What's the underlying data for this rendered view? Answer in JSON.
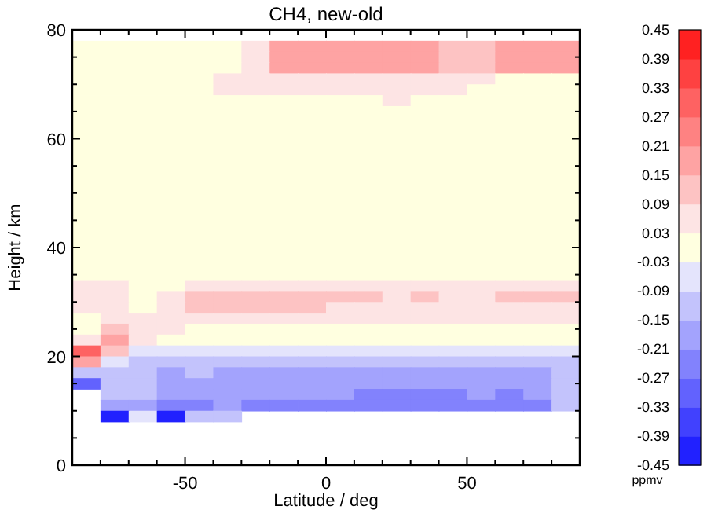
{
  "chart_data": {
    "type": "heatmap",
    "title": "CH4, new-old",
    "xlabel": "Latitude / deg",
    "ylabel": "Height / km",
    "clabel": "ppmv",
    "x": [
      -85,
      -75,
      -65,
      -55,
      -45,
      -35,
      -25,
      -15,
      -5,
      5,
      15,
      25,
      35,
      45,
      55,
      65,
      75,
      85
    ],
    "y": [
      77,
      75,
      73,
      71,
      69,
      67,
      65,
      63,
      61,
      59,
      57,
      55,
      53,
      51,
      49,
      47,
      45,
      43,
      41,
      39,
      37,
      35,
      33,
      31,
      29,
      27,
      25,
      23,
      21,
      19,
      17,
      15,
      13,
      11,
      9
    ],
    "xlim": [
      -90,
      90
    ],
    "xticks": [
      {
        "value": -80,
        "label": null
      },
      {
        "value": -70,
        "label": null
      },
      {
        "value": -60,
        "label": null
      },
      -50,
      {
        "value": -40,
        "label": null
      },
      {
        "value": -30,
        "label": null
      },
      {
        "value": -20,
        "label": null
      },
      {
        "value": -10,
        "label": null
      },
      0,
      {
        "value": 10,
        "label": null
      },
      {
        "value": 20,
        "label": null
      },
      {
        "value": 30,
        "label": null
      },
      {
        "value": 40,
        "label": null
      },
      50,
      {
        "value": 60,
        "label": null
      },
      {
        "value": 70,
        "label": null
      },
      {
        "value": 80,
        "label": null
      }
    ],
    "ylim": [
      0,
      80
    ],
    "yticks": [
      0,
      {
        "value": 5,
        "label": null
      },
      {
        "value": 10,
        "label": null
      },
      {
        "value": 15,
        "label": null
      },
      20,
      {
        "value": 25,
        "label": null
      },
      {
        "value": 30,
        "label": null
      },
      {
        "value": 35,
        "label": null
      },
      40,
      {
        "value": 45,
        "label": null
      },
      {
        "value": 50,
        "label": null
      },
      {
        "value": 55,
        "label": null
      },
      60,
      {
        "value": 65,
        "label": null
      },
      {
        "value": 70,
        "label": null
      },
      {
        "value": 75,
        "label": null
      },
      80
    ],
    "clim": [
      -0.45,
      0.45
    ],
    "cticks": [
      -0.45,
      -0.39,
      -0.33,
      -0.27,
      -0.21,
      -0.15,
      -0.09,
      -0.03,
      0.03,
      0.09,
      0.15,
      0.21,
      0.27,
      0.33,
      0.39,
      0.45
    ],
    "cells": [
      [
        0,
        0,
        0,
        0,
        0,
        0,
        0.06,
        0.18,
        0.18,
        0.18,
        0.18,
        0.18,
        0.18,
        0.12,
        0.12,
        0.18,
        0.18,
        0.18
      ],
      [
        0,
        0,
        0,
        0,
        0,
        0,
        0.06,
        0.18,
        0.18,
        0.18,
        0.18,
        0.18,
        0.18,
        0.12,
        0.12,
        0.18,
        0.18,
        0.18
      ],
      [
        0,
        0,
        0,
        0,
        0,
        0,
        0.06,
        0.18,
        0.18,
        0.18,
        0.18,
        0.18,
        0.18,
        0.12,
        0.12,
        0.18,
        0.18,
        0.18
      ],
      [
        0,
        0,
        0,
        0,
        0,
        0.06,
        0.06,
        0.06,
        0.06,
        0.06,
        0.06,
        0.06,
        0.06,
        0.06,
        0.06,
        0,
        0,
        0
      ],
      [
        0,
        0,
        0,
        0,
        0,
        0.06,
        0.06,
        0.06,
        0.06,
        0.06,
        0.06,
        0.06,
        0.06,
        0.06,
        0,
        0,
        0,
        0
      ],
      [
        0,
        0,
        0,
        0,
        0,
        0,
        0,
        0,
        0,
        0,
        0,
        0.06,
        0,
        0,
        0,
        0,
        0,
        0
      ],
      [
        0,
        0,
        0,
        0,
        0,
        0,
        0,
        0,
        0,
        0,
        0,
        0,
        0,
        0,
        0,
        0,
        0,
        0
      ],
      [
        0,
        0,
        0,
        0,
        0,
        0,
        0,
        0,
        0,
        0,
        0,
        0,
        0,
        0,
        0,
        0,
        0,
        0
      ],
      [
        0,
        0,
        0,
        0,
        0,
        0,
        0,
        0,
        0,
        0,
        0,
        0,
        0,
        0,
        0,
        0,
        0,
        0
      ],
      [
        0,
        0,
        0,
        0,
        0,
        0,
        0,
        0,
        0,
        0,
        0,
        0,
        0,
        0,
        0,
        0,
        0,
        0
      ],
      [
        0,
        0,
        0,
        0,
        0,
        0,
        0,
        0,
        0,
        0,
        0,
        0,
        0,
        0,
        0,
        0,
        0,
        0
      ],
      [
        0,
        0,
        0,
        0,
        0,
        0,
        0,
        0,
        0,
        0,
        0,
        0,
        0,
        0,
        0,
        0,
        0,
        0
      ],
      [
        0,
        0,
        0,
        0,
        0,
        0,
        0,
        0,
        0,
        0,
        0,
        0,
        0,
        0,
        0,
        0,
        0,
        0
      ],
      [
        0,
        0,
        0,
        0,
        0,
        0,
        0,
        0,
        0,
        0,
        0,
        0,
        0,
        0,
        0,
        0,
        0,
        0
      ],
      [
        0,
        0,
        0,
        0,
        0,
        0,
        0,
        0,
        0,
        0,
        0,
        0,
        0,
        0,
        0,
        0,
        0,
        0
      ],
      [
        0,
        0,
        0,
        0,
        0,
        0,
        0,
        0,
        0,
        0,
        0,
        0,
        0,
        0,
        0,
        0,
        0,
        0
      ],
      [
        0,
        0,
        0,
        0,
        0,
        0,
        0,
        0,
        0,
        0,
        0,
        0,
        0,
        0,
        0,
        0,
        0,
        0
      ],
      [
        0,
        0,
        0,
        0,
        0,
        0,
        0,
        0,
        0,
        0,
        0,
        0,
        0,
        0,
        0,
        0,
        0,
        0
      ],
      [
        0,
        0,
        0,
        0,
        0,
        0,
        0,
        0,
        0,
        0,
        0,
        0,
        0,
        0,
        0,
        0,
        0,
        0
      ],
      [
        0,
        0,
        0,
        0,
        0,
        0,
        0,
        0,
        0,
        0,
        0,
        0,
        0,
        0,
        0,
        0,
        0,
        0
      ],
      [
        0,
        0,
        0,
        0,
        0,
        0,
        0,
        0,
        0,
        0,
        0,
        0,
        0,
        0,
        0,
        0,
        0,
        0
      ],
      [
        0,
        0,
        0,
        0,
        0,
        0,
        0,
        0,
        0,
        0,
        0,
        0,
        0,
        0,
        0,
        0,
        0,
        0
      ],
      [
        0.06,
        0.06,
        0,
        0,
        0.06,
        0.06,
        0.06,
        0.06,
        0.06,
        0.06,
        0.06,
        0.06,
        0.06,
        0.06,
        0.06,
        0.06,
        0.06,
        0.06
      ],
      [
        0.06,
        0.06,
        0,
        0.06,
        0.12,
        0.12,
        0.12,
        0.12,
        0.12,
        0.12,
        0.12,
        0.06,
        0.12,
        0.06,
        0.06,
        0.12,
        0.12,
        0.12
      ],
      [
        0.06,
        0.06,
        0,
        0.06,
        0.12,
        0.12,
        0.12,
        0.12,
        0.12,
        0.06,
        0.06,
        0.06,
        0.06,
        0.06,
        0.06,
        0.06,
        0.06,
        0.06
      ],
      [
        0,
        0.06,
        0.06,
        0.06,
        0.06,
        0.06,
        0.06,
        0.06,
        0.06,
        0.06,
        0.06,
        0.06,
        0.06,
        0.06,
        0.06,
        0.06,
        0.06,
        0.06
      ],
      [
        0,
        0.12,
        0.06,
        0.06,
        0,
        0,
        0,
        0,
        0,
        0,
        0,
        0,
        0,
        0,
        0,
        0,
        0,
        0
      ],
      [
        0.06,
        0.18,
        0.06,
        0,
        0,
        0,
        0,
        0,
        0,
        0,
        0,
        0,
        0,
        0,
        0,
        0,
        0,
        0
      ],
      [
        0.3,
        0.12,
        -0.06,
        -0.06,
        -0.06,
        -0.06,
        -0.06,
        -0.06,
        -0.06,
        -0.06,
        -0.06,
        -0.06,
        -0.06,
        -0.06,
        -0.06,
        -0.06,
        -0.06,
        -0.06
      ],
      [
        0.18,
        -0.06,
        -0.12,
        -0.12,
        -0.12,
        -0.12,
        -0.12,
        -0.12,
        -0.12,
        -0.12,
        -0.12,
        -0.12,
        -0.12,
        -0.12,
        -0.12,
        -0.12,
        -0.12,
        -0.12
      ],
      [
        -0.12,
        -0.12,
        -0.12,
        -0.18,
        -0.12,
        -0.18,
        -0.18,
        -0.18,
        -0.18,
        -0.18,
        -0.18,
        -0.18,
        -0.18,
        -0.18,
        -0.18,
        -0.18,
        -0.18,
        -0.12
      ],
      [
        -0.3,
        -0.12,
        -0.12,
        -0.18,
        -0.18,
        -0.18,
        -0.18,
        -0.18,
        -0.18,
        -0.18,
        -0.18,
        -0.18,
        -0.18,
        -0.18,
        -0.18,
        -0.18,
        -0.18,
        -0.12
      ],
      [
        null,
        -0.12,
        -0.12,
        -0.18,
        -0.18,
        -0.18,
        -0.18,
        -0.18,
        -0.18,
        -0.18,
        -0.24,
        -0.24,
        -0.24,
        -0.24,
        -0.18,
        -0.24,
        -0.18,
        -0.12
      ],
      [
        null,
        -0.18,
        -0.18,
        -0.24,
        -0.24,
        -0.18,
        -0.24,
        -0.24,
        -0.24,
        -0.24,
        -0.24,
        -0.24,
        -0.24,
        -0.24,
        -0.24,
        -0.24,
        -0.24,
        -0.12
      ],
      [
        null,
        -0.42,
        -0.06,
        -0.42,
        -0.12,
        -0.12,
        null,
        null,
        null,
        null,
        null,
        null,
        null,
        null,
        null,
        null,
        null,
        null
      ]
    ]
  }
}
